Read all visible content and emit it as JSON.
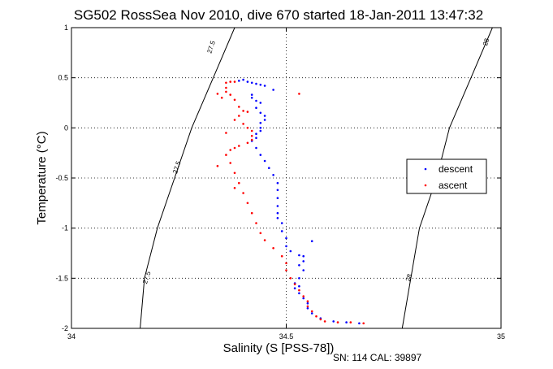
{
  "chart_data": {
    "type": "scatter",
    "title": "SG502 RossSea Nov 2010, dive 670 started 18-Jan-2011 13:47:32",
    "xlabel": "Salinity (S [PSS-78])",
    "ylabel": "Temperature (°C)",
    "xlim": [
      34,
      35
    ],
    "ylim": [
      -2,
      1
    ],
    "x_ticks": [
      "34",
      "34.5",
      "35"
    ],
    "y_ticks": [
      "-2",
      "-1.5",
      "-1",
      "-0.5",
      "0",
      "0.5",
      "1"
    ],
    "grid": "dotted",
    "legend_position": "right",
    "series": [
      {
        "name": "descent",
        "color": "#0000ff",
        "marker": "dot",
        "points": [
          [
            34.39,
            0.47
          ],
          [
            34.4,
            0.48
          ],
          [
            34.41,
            0.46
          ],
          [
            34.42,
            0.45
          ],
          [
            34.43,
            0.44
          ],
          [
            34.44,
            0.43
          ],
          [
            34.45,
            0.42
          ],
          [
            34.47,
            0.38
          ],
          [
            34.42,
            0.33
          ],
          [
            34.42,
            0.3
          ],
          [
            34.43,
            0.27
          ],
          [
            34.44,
            0.25
          ],
          [
            34.43,
            0.2
          ],
          [
            34.44,
            0.15
          ],
          [
            34.45,
            0.12
          ],
          [
            34.45,
            0.08
          ],
          [
            34.44,
            0.05
          ],
          [
            34.44,
            0.0
          ],
          [
            34.44,
            -0.03
          ],
          [
            34.43,
            -0.06
          ],
          [
            34.43,
            -0.1
          ],
          [
            34.42,
            -0.13
          ],
          [
            34.43,
            -0.2
          ],
          [
            34.44,
            -0.27
          ],
          [
            34.45,
            -0.33
          ],
          [
            34.46,
            -0.4
          ],
          [
            34.47,
            -0.47
          ],
          [
            34.48,
            -0.55
          ],
          [
            34.48,
            -0.62
          ],
          [
            34.48,
            -0.7
          ],
          [
            34.48,
            -0.78
          ],
          [
            34.48,
            -0.85
          ],
          [
            34.48,
            -0.9
          ],
          [
            34.49,
            -0.95
          ],
          [
            34.49,
            -1.03
          ],
          [
            34.5,
            -1.1
          ],
          [
            34.5,
            -1.18
          ],
          [
            34.51,
            -1.23
          ],
          [
            34.53,
            -1.27
          ],
          [
            34.54,
            -1.33
          ],
          [
            34.53,
            -1.37
          ],
          [
            34.54,
            -1.42
          ],
          [
            34.53,
            -1.5
          ],
          [
            34.52,
            -1.55
          ],
          [
            34.52,
            -1.6
          ],
          [
            34.53,
            -1.65
          ],
          [
            34.54,
            -1.7
          ],
          [
            34.55,
            -1.75
          ],
          [
            34.55,
            -1.8
          ],
          [
            34.56,
            -1.85
          ],
          [
            34.58,
            -1.9
          ],
          [
            34.61,
            -1.93
          ],
          [
            34.64,
            -1.94
          ],
          [
            34.67,
            -1.95
          ],
          [
            34.56,
            -1.13
          ],
          [
            34.54,
            -1.28
          ],
          [
            34.53,
            -1.58
          ]
        ]
      },
      {
        "name": "ascent",
        "color": "#ff0000",
        "marker": "dot",
        "points": [
          [
            34.36,
            0.45
          ],
          [
            34.37,
            0.46
          ],
          [
            34.38,
            0.46
          ],
          [
            34.36,
            0.4
          ],
          [
            34.35,
            0.3
          ],
          [
            34.34,
            0.34
          ],
          [
            34.37,
            0.33
          ],
          [
            34.36,
            0.36
          ],
          [
            34.38,
            0.28
          ],
          [
            34.39,
            0.21
          ],
          [
            34.4,
            0.17
          ],
          [
            34.41,
            0.16
          ],
          [
            34.39,
            0.12
          ],
          [
            34.38,
            0.08
          ],
          [
            34.4,
            0.04
          ],
          [
            34.41,
            0.0
          ],
          [
            34.42,
            -0.03
          ],
          [
            34.42,
            -0.08
          ],
          [
            34.42,
            -0.12
          ],
          [
            34.41,
            -0.15
          ],
          [
            34.39,
            -0.18
          ],
          [
            34.38,
            -0.2
          ],
          [
            34.37,
            -0.22
          ],
          [
            34.36,
            -0.27
          ],
          [
            34.37,
            -0.35
          ],
          [
            34.38,
            -0.45
          ],
          [
            34.39,
            -0.55
          ],
          [
            34.4,
            -0.65
          ],
          [
            34.41,
            -0.75
          ],
          [
            34.42,
            -0.85
          ],
          [
            34.43,
            -0.95
          ],
          [
            34.44,
            -1.05
          ],
          [
            34.45,
            -1.12
          ],
          [
            34.47,
            -1.2
          ],
          [
            34.49,
            -1.28
          ],
          [
            34.5,
            -1.35
          ],
          [
            34.5,
            -1.42
          ],
          [
            34.51,
            -1.5
          ],
          [
            34.52,
            -1.56
          ],
          [
            34.53,
            -1.62
          ],
          [
            34.54,
            -1.68
          ],
          [
            34.55,
            -1.73
          ],
          [
            34.55,
            -1.78
          ],
          [
            34.56,
            -1.83
          ],
          [
            34.57,
            -1.88
          ],
          [
            34.58,
            -1.91
          ],
          [
            34.59,
            -1.93
          ],
          [
            34.62,
            -1.94
          ],
          [
            34.65,
            -1.94
          ],
          [
            34.68,
            -1.95
          ],
          [
            34.53,
            0.34
          ],
          [
            34.36,
            -0.05
          ],
          [
            34.34,
            -0.38
          ],
          [
            34.38,
            -0.6
          ]
        ]
      }
    ],
    "contours": [
      {
        "label": "27.5",
        "points": [
          [
            34.16,
            -2.0
          ],
          [
            34.17,
            -1.5
          ],
          [
            34.2,
            -1.0
          ],
          [
            34.24,
            -0.5
          ],
          [
            34.28,
            0.0
          ],
          [
            34.33,
            0.5
          ],
          [
            34.38,
            1.0
          ]
        ],
        "label_positions": [
          [
            34.18,
            -1.5
          ],
          [
            34.25,
            -0.4
          ],
          [
            34.33,
            0.8
          ]
        ]
      },
      {
        "label": "28",
        "points": [
          [
            34.77,
            -2.0
          ],
          [
            34.79,
            -1.5
          ],
          [
            34.81,
            -1.0
          ],
          [
            34.85,
            -0.5
          ],
          [
            34.88,
            0.0
          ],
          [
            34.93,
            0.5
          ],
          [
            34.98,
            1.0
          ]
        ],
        "label_positions": [
          [
            34.79,
            -1.5
          ],
          [
            34.97,
            0.85
          ]
        ]
      }
    ],
    "footer": "SN: 114  CAL: 39897"
  }
}
